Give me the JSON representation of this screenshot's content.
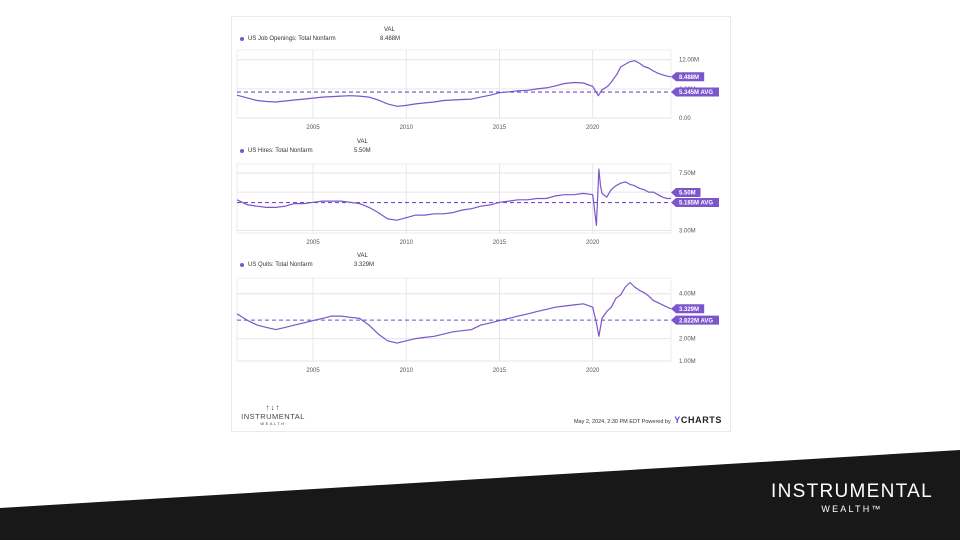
{
  "colors": {
    "line": "#7b55cc",
    "avg": "#6a4fc7",
    "grid": "#e6e6ea",
    "band": "#181818",
    "brand_text": "#ffffff"
  },
  "header": {
    "val_label": "VAL"
  },
  "chart_data": [
    {
      "type": "line",
      "series": [
        {
          "name": "US Job Openings: Total Nonfarm",
          "last_value_label": "8.488M",
          "x": [
            2000.92,
            2001.5,
            2002.0,
            2002.5,
            2003.0,
            2003.5,
            2004.0,
            2004.5,
            2005.0,
            2005.5,
            2006.0,
            2006.5,
            2007.0,
            2007.5,
            2008.0,
            2008.5,
            2009.0,
            2009.5,
            2010.0,
            2010.5,
            2011.0,
            2011.5,
            2012.0,
            2012.5,
            2013.0,
            2013.5,
            2014.0,
            2014.5,
            2015.0,
            2015.5,
            2016.0,
            2016.5,
            2017.0,
            2017.5,
            2018.0,
            2018.5,
            2019.0,
            2019.5,
            2020.0,
            2020.3,
            2020.5,
            2020.8,
            2021.0,
            2021.3,
            2021.5,
            2021.8,
            2022.0,
            2022.25,
            2022.5,
            2022.75,
            2023.0,
            2023.25,
            2023.5,
            2023.75,
            2024.0,
            2024.2
          ],
          "y": [
            4.7,
            4.1,
            3.6,
            3.4,
            3.3,
            3.5,
            3.7,
            3.9,
            4.1,
            4.3,
            4.4,
            4.5,
            4.6,
            4.5,
            4.3,
            3.7,
            2.9,
            2.4,
            2.6,
            2.9,
            3.1,
            3.3,
            3.6,
            3.7,
            3.8,
            3.9,
            4.3,
            4.7,
            5.2,
            5.4,
            5.6,
            5.7,
            6.0,
            6.2,
            6.6,
            7.1,
            7.3,
            7.2,
            6.5,
            4.6,
            5.8,
            6.5,
            7.4,
            9.0,
            10.5,
            11.2,
            11.6,
            11.8,
            11.3,
            10.6,
            10.3,
            9.7,
            9.2,
            8.9,
            8.6,
            8.488
          ]
        }
      ],
      "average": 5.345,
      "average_label": "5.345M AVG",
      "x_ticks": [
        "2005",
        "2010",
        "2015",
        "2020"
      ],
      "x_tick_values": [
        2005,
        2010,
        2015,
        2020
      ],
      "y_ticks": [
        "12.00M",
        "6.00M",
        "0.00"
      ],
      "y_tick_values": [
        12,
        6,
        0
      ],
      "xlim": [
        2000.92,
        2024.2
      ],
      "ylim": [
        0,
        14.0
      ],
      "grid": true
    },
    {
      "type": "line",
      "series": [
        {
          "name": "US Hires: Total Nonfarm",
          "last_value_label": "5.50M",
          "x": [
            2000.92,
            2001.5,
            2002.0,
            2002.5,
            2003.0,
            2003.5,
            2004.0,
            2004.5,
            2005.0,
            2005.5,
            2006.0,
            2006.5,
            2007.0,
            2007.5,
            2008.0,
            2008.5,
            2009.0,
            2009.5,
            2010.0,
            2010.5,
            2011.0,
            2011.5,
            2012.0,
            2012.5,
            2013.0,
            2013.5,
            2014.0,
            2014.5,
            2015.0,
            2015.5,
            2016.0,
            2016.5,
            2017.0,
            2017.5,
            2018.0,
            2018.5,
            2019.0,
            2019.5,
            2020.0,
            2020.2,
            2020.33,
            2020.42,
            2020.5,
            2020.75,
            2021.0,
            2021.25,
            2021.5,
            2021.75,
            2022.0,
            2022.25,
            2022.5,
            2022.75,
            2023.0,
            2023.25,
            2023.5,
            2023.75,
            2024.0,
            2024.2
          ],
          "y": [
            5.4,
            5.0,
            4.9,
            4.8,
            4.8,
            4.9,
            5.1,
            5.1,
            5.2,
            5.3,
            5.3,
            5.3,
            5.2,
            5.1,
            4.8,
            4.4,
            3.9,
            3.8,
            4.0,
            4.2,
            4.2,
            4.3,
            4.3,
            4.4,
            4.6,
            4.7,
            4.9,
            5.0,
            5.2,
            5.3,
            5.4,
            5.4,
            5.5,
            5.5,
            5.7,
            5.8,
            5.8,
            5.9,
            5.8,
            3.4,
            7.8,
            6.5,
            5.9,
            5.6,
            6.2,
            6.5,
            6.7,
            6.8,
            6.6,
            6.5,
            6.3,
            6.2,
            6.0,
            6.0,
            5.8,
            5.6,
            5.5,
            5.5
          ]
        }
      ],
      "average": 5.185,
      "average_label": "5.185M AVG",
      "x_ticks": [
        "2005",
        "2010",
        "2015",
        "2020"
      ],
      "x_tick_values": [
        2005,
        2010,
        2015,
        2020
      ],
      "y_ticks": [
        "7.50M",
        "6.00M",
        "3.00M"
      ],
      "y_tick_values": [
        7.5,
        6.0,
        3.0
      ],
      "xlim": [
        2000.92,
        2024.2
      ],
      "ylim": [
        2.8,
        8.2
      ],
      "grid": true
    },
    {
      "type": "line",
      "series": [
        {
          "name": "US Quits: Total Nonfarm",
          "last_value_label": "3.329M",
          "x": [
            2000.92,
            2001.5,
            2002.0,
            2002.5,
            2003.0,
            2003.5,
            2004.0,
            2004.5,
            2005.0,
            2005.5,
            2006.0,
            2006.5,
            2007.0,
            2007.5,
            2008.0,
            2008.5,
            2009.0,
            2009.5,
            2010.0,
            2010.5,
            2011.0,
            2011.5,
            2012.0,
            2012.5,
            2013.0,
            2013.5,
            2014.0,
            2014.5,
            2015.0,
            2015.5,
            2016.0,
            2016.5,
            2017.0,
            2017.5,
            2018.0,
            2018.5,
            2019.0,
            2019.5,
            2020.0,
            2020.2,
            2020.33,
            2020.5,
            2020.75,
            2021.0,
            2021.25,
            2021.5,
            2021.75,
            2022.0,
            2022.25,
            2022.5,
            2022.75,
            2023.0,
            2023.25,
            2023.5,
            2023.75,
            2024.0,
            2024.2
          ],
          "y": [
            3.1,
            2.8,
            2.6,
            2.5,
            2.4,
            2.5,
            2.6,
            2.7,
            2.8,
            2.9,
            3.0,
            3.0,
            2.95,
            2.9,
            2.6,
            2.2,
            1.9,
            1.8,
            1.9,
            2.0,
            2.05,
            2.1,
            2.2,
            2.3,
            2.35,
            2.4,
            2.6,
            2.7,
            2.8,
            2.9,
            3.0,
            3.1,
            3.2,
            3.3,
            3.4,
            3.45,
            3.5,
            3.55,
            3.4,
            2.7,
            2.1,
            2.9,
            3.2,
            3.4,
            3.8,
            3.95,
            4.3,
            4.5,
            4.3,
            4.15,
            4.05,
            3.9,
            3.7,
            3.6,
            3.5,
            3.4,
            3.329
          ]
        }
      ],
      "average": 2.822,
      "average_label": "2.822M AVG",
      "x_ticks": [
        "2005",
        "2010",
        "2015",
        "2020"
      ],
      "x_tick_values": [
        2005,
        2010,
        2015,
        2020
      ],
      "y_ticks": [
        "4.00M",
        "2.00M",
        "1.00M"
      ],
      "y_tick_values": [
        4.0,
        2.0,
        1.0
      ],
      "xlim": [
        2000.92,
        2024.2
      ],
      "ylim": [
        1.0,
        4.7
      ],
      "grid": true
    }
  ],
  "credit": {
    "text": "May 2, 2024, 2:30 PM EDT Powered by",
    "brand_mark": "Y",
    "brand_text": "CHARTS"
  },
  "card_logo": {
    "mark": "↑↓↑",
    "name": "INSTRUMENTAL",
    "sub": "WEALTH"
  },
  "brand": {
    "name": "INSTRUMENTAL",
    "sub": "WEALTH™"
  }
}
